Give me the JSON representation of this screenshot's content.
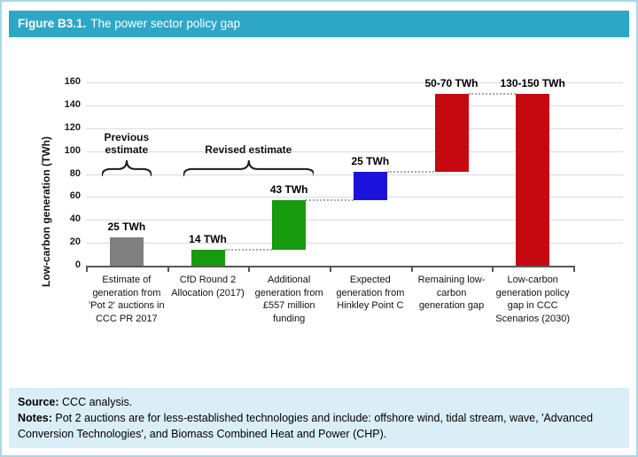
{
  "header": {
    "figure_label": "Figure B3.1.",
    "title": "The power sector policy gap"
  },
  "chart_data": {
    "type": "bar",
    "subtype": "waterfall",
    "title": "",
    "xlabel": "",
    "ylabel": "Low-carbon generation (TWh)",
    "ylim": [
      0,
      160
    ],
    "ytick_step": 20,
    "grid": true,
    "legend": "none",
    "categories": [
      "Estimate of generation from 'Pot 2' auctions in CCC PR 2017",
      "CfD Round 2 Allocation (2017)",
      "Additional generation from £557 million funding",
      "Expected generation from Hinkley Point C",
      "Remaining low-carbon generation gap",
      "Low-carbon generation policy gap in CCC Scenarios (2030)"
    ],
    "bars": [
      {
        "name": "pot2-previous-estimate",
        "start": 0,
        "end": 25,
        "value_label": "25 TWh",
        "color": "#808080"
      },
      {
        "name": "cfd-round2-allocation",
        "start": 0,
        "end": 14,
        "value_label": "14 TWh",
        "color": "#179a0e"
      },
      {
        "name": "additional-generation",
        "start": 14,
        "end": 57,
        "value_label": "43 TWh",
        "color": "#179a0e"
      },
      {
        "name": "hinkley-point-c",
        "start": 57,
        "end": 82,
        "value_label": "25 TWh",
        "color": "#1b13dc"
      },
      {
        "name": "remaining-gap",
        "start": 82,
        "end": 150,
        "value_label": "50-70 TWh",
        "color": "#c60810"
      },
      {
        "name": "policy-gap-2030",
        "start": 0,
        "end": 150,
        "value_label": "130-150 TWh",
        "color": "#c60810"
      }
    ],
    "connectors": [
      {
        "from": 1,
        "to": 2,
        "level": 14
      },
      {
        "from": 2,
        "to": 3,
        "level": 57
      },
      {
        "from": 3,
        "to": 4,
        "level": 82
      },
      {
        "from": 4,
        "to": 5,
        "level": 150
      }
    ],
    "annotations": [
      {
        "text": "Previous\nestimate",
        "first_bar": 0,
        "last_bar": 0
      },
      {
        "text": "Revised estimate",
        "first_bar": 1,
        "last_bar": 2
      }
    ]
  },
  "footer": {
    "source_label": "Source:",
    "source_text": " CCC analysis.",
    "notes_label": "Notes:",
    "notes_text": " Pot 2 auctions are for less-established technologies and include: offshore wind, tidal stream, wave, 'Advanced Conversion Technologies', and Biomass Combined Heat and Power (CHP)."
  },
  "colors": {
    "header_bg": "#2ea7c7",
    "figure_border": "#a7d8e8",
    "footer_bg": "#d9eef7",
    "gridline": "#dadada",
    "axis": "#595959",
    "connector": "#a9a9a9",
    "bar_gray": "#808080",
    "bar_green": "#179a0e",
    "bar_blue": "#1b13dc",
    "bar_red": "#c60810"
  }
}
